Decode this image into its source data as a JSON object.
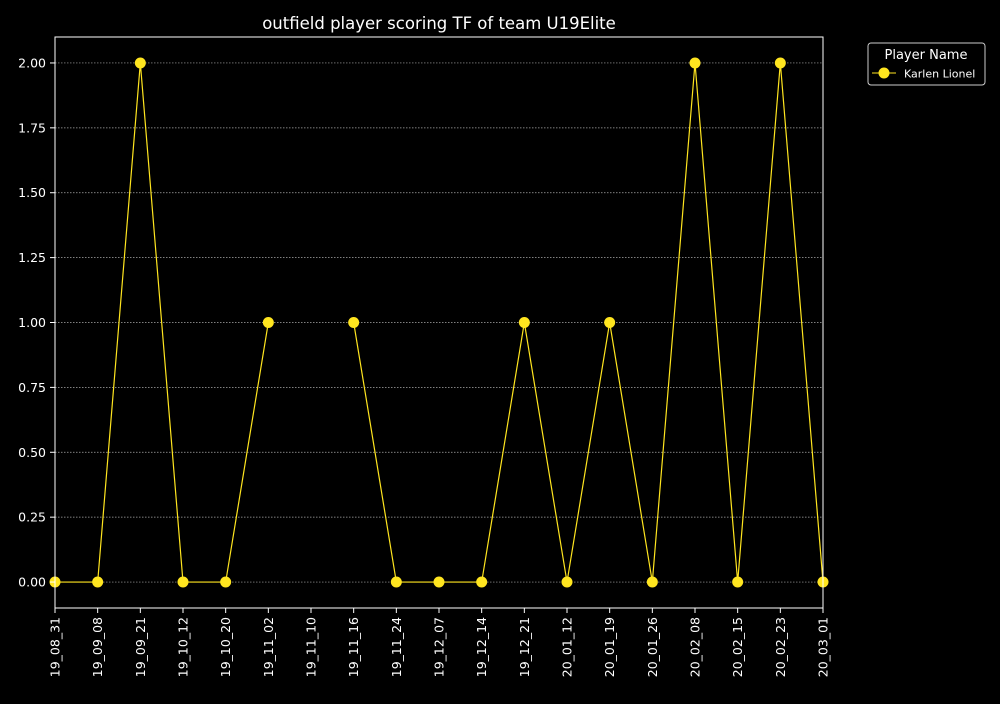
{
  "chart_data": {
    "type": "line",
    "title": "outfield player scoring TF of team U19Elite",
    "xlabel": "",
    "ylabel": "",
    "categories": [
      "19_08_31",
      "19_09_08",
      "19_09_21",
      "19_10_12",
      "19_10_20",
      "19_11_02",
      "19_11_10",
      "19_11_16",
      "19_11_24",
      "19_12_07",
      "19_12_14",
      "19_12_21",
      "20_01_12",
      "20_01_19",
      "20_01_26",
      "20_02_08",
      "20_02_15",
      "20_02_23",
      "20_03_01"
    ],
    "series": [
      {
        "name": "Karlen Lionel",
        "values": [
          0,
          0,
          2,
          0,
          0,
          1,
          null,
          1,
          0,
          0,
          0,
          1,
          0,
          1,
          0,
          2,
          0,
          2,
          0
        ]
      }
    ],
    "ylim": [
      -0.1,
      2.1
    ],
    "yticks": [
      "0.00",
      "0.25",
      "0.50",
      "0.75",
      "1.00",
      "1.25",
      "1.50",
      "1.75",
      "2.00"
    ],
    "grid": true,
    "legend": {
      "title": "Player Name",
      "placement": "outside-top-right"
    },
    "colors": {
      "background": "#000000",
      "foreground": "#ffffff",
      "series": "#ffe51f",
      "grid": "#aaaaaa"
    }
  }
}
